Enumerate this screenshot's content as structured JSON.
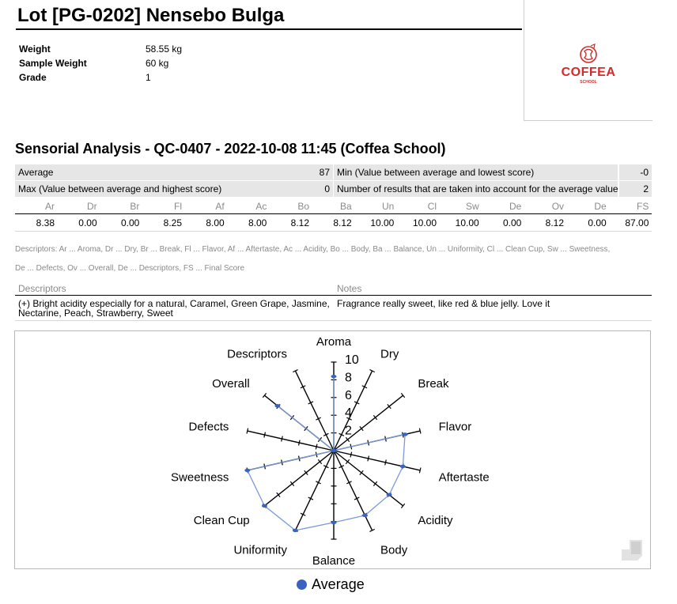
{
  "lot": {
    "title": "Lot [PG-0202] Nensebo Bulga",
    "fields": [
      {
        "label": "Weight",
        "value": "58.55 kg"
      },
      {
        "label": "Sample Weight",
        "value": "60 kg"
      },
      {
        "label": "Grade",
        "value": "1"
      }
    ]
  },
  "logo": {
    "text": "COFFEA",
    "subtext": "SCHOOL",
    "color": "#d42a2a"
  },
  "analysis": {
    "title": "Sensorial Analysis - QC-0407 - 2022-10-08 11:45 (Coffea School)",
    "summary": {
      "average_label": "Average",
      "average_value": "87",
      "min_label": "Min (Value between average and lowest score)",
      "min_value": "-0",
      "max_label": "Max (Value between average and highest score)",
      "max_value": "0",
      "count_label": "Number of results that are taken into account for the average value",
      "count_value": "2"
    },
    "score_headers": [
      "Ar",
      "Dr",
      "Br",
      "Fl",
      "Af",
      "Ac",
      "Bo",
      "Ba",
      "Un",
      "Cl",
      "Sw",
      "De",
      "Ov",
      "De",
      "FS"
    ],
    "score_values": [
      "8.38",
      "0.00",
      "0.00",
      "8.25",
      "8.00",
      "8.00",
      "8.12",
      "8.12",
      "10.00",
      "10.00",
      "10.00",
      "0.00",
      "8.12",
      "0.00",
      "87.00"
    ],
    "descriptor_legend_line1": "Descriptors: Ar ... Aroma, Dr ... Dry, Br ... Break, Fl ... Flavor, Af ... Aftertaste, Ac ... Acidity, Bo ... Body, Ba ... Balance, Un ... Uniformity, Cl ... Clean Cup, Sw ... Sweetness,",
    "descriptor_legend_line2": "De ... Defects, Ov ... Overall, De ... Descriptors, FS ... Final Score",
    "notes_table": {
      "headers": {
        "descriptors": "Descriptors",
        "notes": "Notes"
      },
      "descriptors_text": "(+) Bright acidity especially for a natural, Caramel, Green Grape, Jasmine, Nectarine, Peach, Strawberry, Sweet",
      "notes_text": "Fragrance really sweet, like red & blue jelly. Love it"
    }
  },
  "chart_data": {
    "type": "radar",
    "axes": [
      "Aroma",
      "Dry",
      "Break",
      "Flavor",
      "Aftertaste",
      "Acidity",
      "Body",
      "Balance",
      "Uniformity",
      "Clean Cup",
      "Sweetness",
      "Defects",
      "Overall",
      "Descriptors"
    ],
    "tick_labels": [
      "2",
      "4",
      "6",
      "8",
      "10"
    ],
    "range": [
      0,
      10
    ],
    "series": [
      {
        "name": "Average",
        "color": "#3a62c0",
        "values": [
          8.38,
          0,
          0,
          8.25,
          8.0,
          8.0,
          8.12,
          8.12,
          10.0,
          10.0,
          10.0,
          0,
          8.12,
          0
        ]
      }
    ],
    "legend": {
      "label": "Average",
      "position": "bottom"
    }
  }
}
